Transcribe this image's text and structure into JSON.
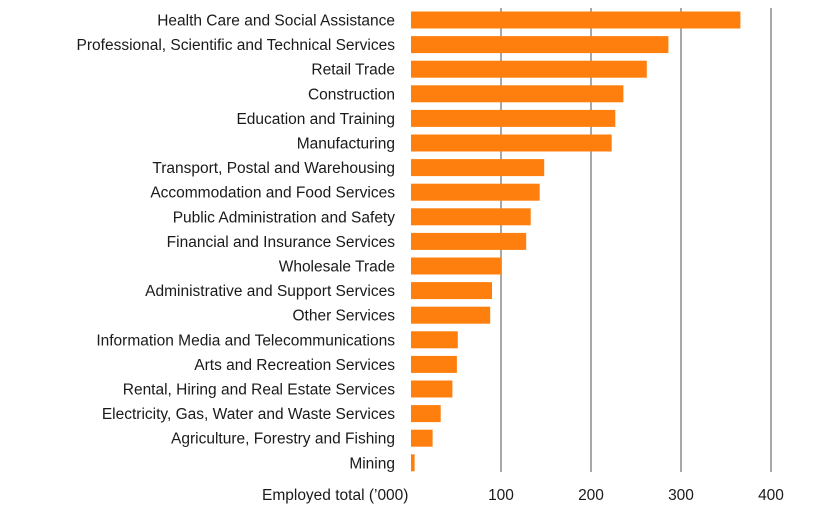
{
  "chart_data": {
    "type": "bar",
    "orientation": "horizontal",
    "title": "",
    "xlabel": "Employed total (’000)",
    "ylabel": "",
    "xlim": [
      0,
      400
    ],
    "xticks": [
      100,
      200,
      300,
      400
    ],
    "grid": "vertical",
    "bar_color": "#ff7f0e",
    "categories": [
      "Health Care and Social Assistance",
      "Professional, Scientific and Technical Services",
      "Retail Trade",
      "Construction",
      "Education and Training",
      "Manufacturing",
      "Transport, Postal and Warehousing",
      "Accommodation and Food Services",
      "Public Administration and Safety",
      "Financial and Insurance Services",
      "Wholesale Trade",
      "Administrative and Support Services",
      "Other Services",
      "Information Media and Telecommunications",
      "Arts and Recreation Services",
      "Rental, Hiring and Real Estate Services",
      "Electricity, Gas, Water and Waste Services",
      "Agriculture, Forestry and Fishing",
      "Mining"
    ],
    "values": [
      366,
      286,
      262,
      236,
      227,
      223,
      148,
      143,
      133,
      128,
      100,
      90,
      88,
      52,
      51,
      46,
      33,
      24,
      4
    ]
  }
}
